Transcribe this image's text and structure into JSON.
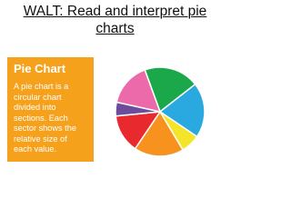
{
  "title_lines": [
    "WALT: Read and interpret pie",
    "charts"
  ],
  "box": {
    "heading": "Pie Chart",
    "lines": [
      "A pie chart is a",
      "circular chart",
      "divided into",
      "sections. Each",
      "sector shows the",
      "relative size of",
      "each value."
    ]
  },
  "chart_data": {
    "type": "pie",
    "values": [
      20,
      20,
      7,
      18,
      14,
      5,
      16
    ],
    "colors": [
      "#1ba84b",
      "#2aa9e0",
      "#f4e52a",
      "#f7921e",
      "#e8292d",
      "#6b4d9b",
      "#ec6aa9"
    ]
  }
}
